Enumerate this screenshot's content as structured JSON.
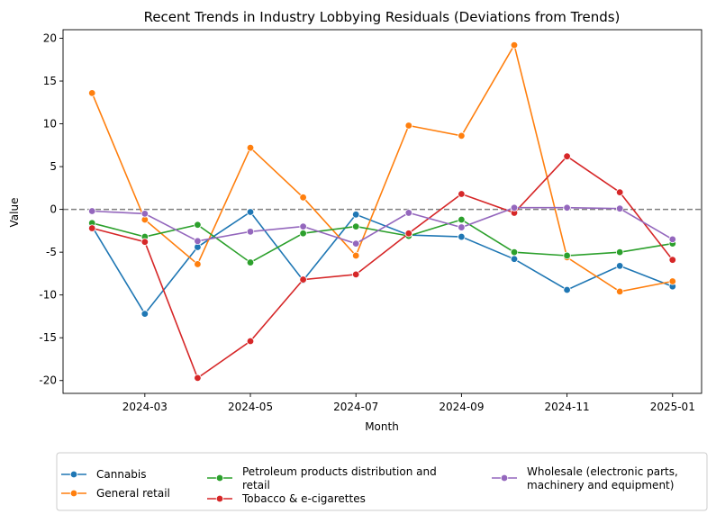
{
  "chart_data": {
    "type": "line",
    "title": "Recent Trends in Industry Lobbying Residuals (Deviations from Trends)",
    "xlabel": "Month",
    "ylabel": "Value",
    "x": [
      "2024-02",
      "2024-03",
      "2024-04",
      "2024-05",
      "2024-06",
      "2024-07",
      "2024-08",
      "2024-09",
      "2024-10",
      "2024-11",
      "2024-12",
      "2025-01"
    ],
    "x_ticks": [
      "2024-03",
      "2024-05",
      "2024-07",
      "2024-09",
      "2024-11",
      "2025-01"
    ],
    "ylim": [
      -21.5,
      21.0
    ],
    "y_ticks": [
      -20,
      -15,
      -10,
      -5,
      0,
      5,
      10,
      15,
      20
    ],
    "reference_line": 0,
    "grid": false,
    "legend_position": "bottom",
    "series": [
      {
        "name": "Cannabis",
        "color": "#1f77b4",
        "values": [
          -2.0,
          -12.2,
          -4.4,
          -0.3,
          -8.3,
          -0.6,
          -3.0,
          -3.2,
          -5.8,
          -9.4,
          -6.6,
          -9.0
        ]
      },
      {
        "name": "General retail",
        "color": "#ff7f0e",
        "values": [
          13.6,
          -1.2,
          -6.4,
          7.2,
          1.4,
          -5.4,
          9.8,
          8.6,
          19.2,
          -5.6,
          -9.6,
          -8.4
        ]
      },
      {
        "name": "Petroleum products distribution and retail",
        "color": "#2ca02c",
        "values": [
          -1.6,
          -3.2,
          -1.8,
          -6.2,
          -2.8,
          -2.0,
          -3.1,
          -1.2,
          -5.0,
          -5.4,
          -5.0,
          -4.0
        ]
      },
      {
        "name": "Tobacco & e-cigarettes",
        "color": "#d62728",
        "values": [
          -2.2,
          -3.8,
          -19.7,
          -15.4,
          -8.2,
          -7.6,
          -2.8,
          1.8,
          -0.4,
          6.2,
          2.0,
          -5.9
        ]
      },
      {
        "name": "Wholesale (electronic parts, machinery and equipment)",
        "color": "#9467bd",
        "values": [
          -0.2,
          -0.5,
          -3.7,
          -2.6,
          -2.0,
          -4.0,
          -0.4,
          -2.1,
          0.2,
          0.2,
          0.1,
          -3.5
        ]
      }
    ]
  }
}
